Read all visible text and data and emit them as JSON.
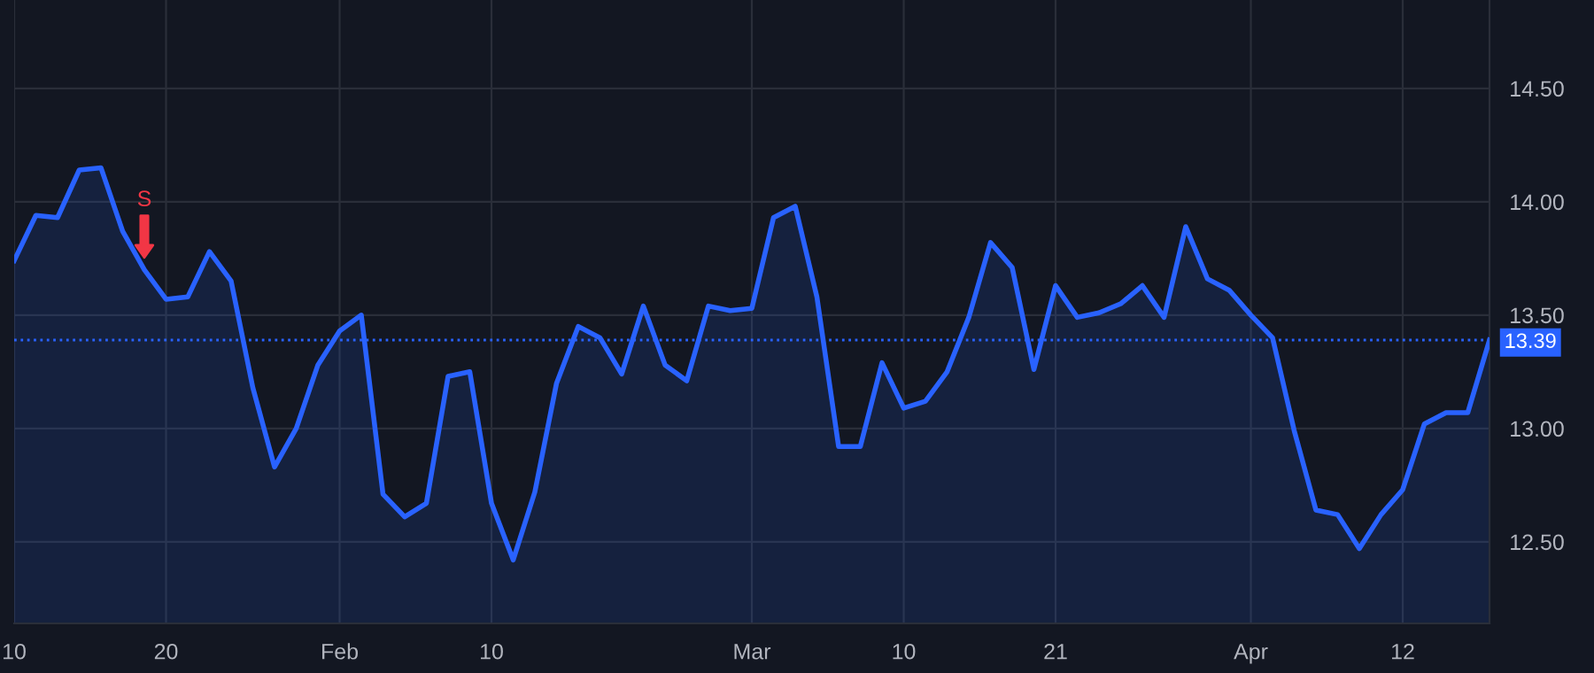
{
  "chart_data": {
    "type": "area",
    "categories": [
      "10",
      null,
      null,
      null,
      null,
      null,
      null,
      "20",
      null,
      null,
      null,
      null,
      null,
      null,
      null,
      "Feb",
      null,
      null,
      null,
      null,
      null,
      null,
      "10",
      null,
      null,
      null,
      null,
      null,
      null,
      null,
      null,
      null,
      null,
      null,
      "Mar",
      null,
      null,
      null,
      null,
      null,
      null,
      "10",
      null,
      null,
      null,
      null,
      null,
      null,
      "21",
      null,
      null,
      null,
      null,
      null,
      null,
      null,
      null,
      "Apr",
      null,
      null,
      null,
      null,
      null,
      null,
      "12",
      null,
      null,
      null,
      null
    ],
    "series": [
      {
        "color": "#2962ff",
        "values": [
          13.74,
          13.94,
          13.93,
          14.14,
          14.15,
          13.87,
          13.7,
          13.57,
          13.58,
          13.78,
          13.65,
          13.18,
          12.83,
          13.0,
          13.28,
          13.43,
          13.5,
          12.71,
          12.61,
          12.67,
          13.23,
          13.25,
          12.67,
          12.42,
          12.72,
          13.2,
          13.45,
          13.4,
          13.24,
          13.54,
          13.28,
          13.21,
          13.54,
          13.52,
          13.53,
          13.93,
          13.98,
          13.58,
          12.92,
          12.92,
          13.29,
          13.09,
          13.12,
          13.25,
          13.49,
          13.82,
          13.71,
          13.26,
          13.63,
          13.49,
          13.51,
          13.55,
          13.63,
          13.49,
          13.89,
          13.66,
          13.61,
          13.5,
          13.4,
          12.99,
          12.64,
          12.62,
          12.47,
          12.62,
          12.73,
          13.02,
          13.07,
          13.07,
          13.39
        ]
      }
    ],
    "ylim": [
      12.14,
      14.89
    ],
    "yticks": [
      {
        "value": 12.5,
        "label": "12.50"
      },
      {
        "value": 13,
        "label": "13.00"
      },
      {
        "value": 13.5,
        "label": "13.50"
      },
      {
        "value": 14,
        "label": "14.00"
      },
      {
        "value": 14.5,
        "label": "14.50"
      }
    ],
    "ref_lines": [
      {
        "axis": "y",
        "value": 13.39,
        "label": "13.39",
        "color": "#2962ff",
        "line_style": "dotted"
      }
    ],
    "annotations": [
      {
        "text": "S",
        "y": 13.7
      }
    ],
    "grid": true,
    "legend": false
  }
}
